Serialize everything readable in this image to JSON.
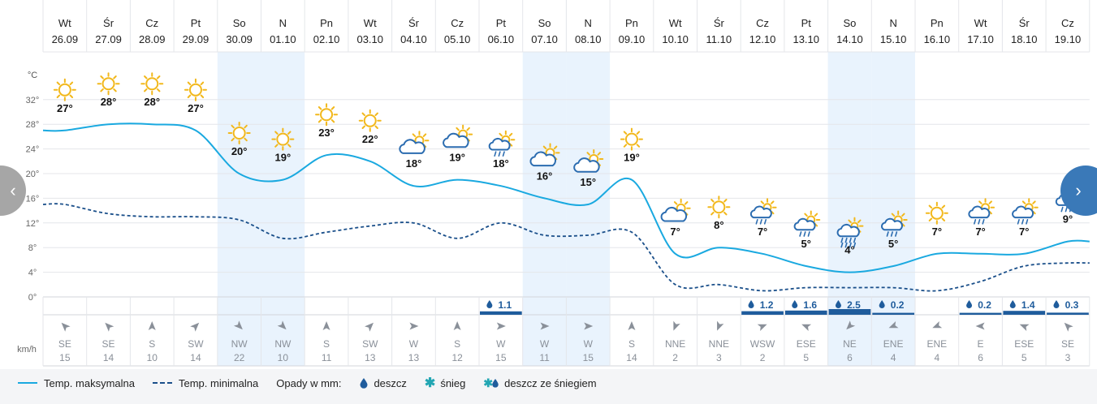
{
  "colors": {
    "max_line": "#1aa9e0",
    "min_line": "#1a4f8a",
    "weekend_bg": "#e9f3fd",
    "precip_bar": "#1f5c9c",
    "grid": "#e4e6ea",
    "sun": "#f2b81c",
    "cloud": "#2b6cb0"
  },
  "days": [
    {
      "dow": "Wt",
      "date": "26.09",
      "weekend": false,
      "temp_label": "27°",
      "icon": "sun-icon",
      "icon_temp": 27,
      "precip": "",
      "precip_mm": 0,
      "wind_dir": "SE",
      "wind_deg": 315,
      "wind_speed": "15"
    },
    {
      "dow": "Śr",
      "date": "27.09",
      "weekend": false,
      "temp_label": "28°",
      "icon": "sun-icon",
      "icon_temp": 28,
      "precip": "",
      "precip_mm": 0,
      "wind_dir": "SE",
      "wind_deg": 315,
      "wind_speed": "14"
    },
    {
      "dow": "Cz",
      "date": "28.09",
      "weekend": false,
      "temp_label": "28°",
      "icon": "sun-icon",
      "icon_temp": 28,
      "precip": "",
      "precip_mm": 0,
      "wind_dir": "S",
      "wind_deg": 0,
      "wind_speed": "10"
    },
    {
      "dow": "Pt",
      "date": "29.09",
      "weekend": false,
      "temp_label": "27°",
      "icon": "sun-icon",
      "icon_temp": 27,
      "precip": "",
      "precip_mm": 0,
      "wind_dir": "SW",
      "wind_deg": 45,
      "wind_speed": "14"
    },
    {
      "dow": "So",
      "date": "30.09",
      "weekend": true,
      "temp_label": "20°",
      "icon": "sun-icon",
      "icon_temp": 20,
      "precip": "",
      "precip_mm": 0,
      "wind_dir": "NW",
      "wind_deg": 135,
      "wind_speed": "22"
    },
    {
      "dow": "N",
      "date": "01.10",
      "weekend": true,
      "temp_label": "19°",
      "icon": "sun-icon",
      "icon_temp": 19,
      "precip": "",
      "precip_mm": 0,
      "wind_dir": "NW",
      "wind_deg": 135,
      "wind_speed": "10"
    },
    {
      "dow": "Pn",
      "date": "02.10",
      "weekend": false,
      "temp_label": "23°",
      "icon": "sun-icon",
      "icon_temp": 23,
      "precip": "",
      "precip_mm": 0,
      "wind_dir": "S",
      "wind_deg": 0,
      "wind_speed": "11"
    },
    {
      "dow": "Wt",
      "date": "03.10",
      "weekend": false,
      "temp_label": "22°",
      "icon": "sun-icon",
      "icon_temp": 22,
      "precip": "",
      "precip_mm": 0,
      "wind_dir": "SW",
      "wind_deg": 45,
      "wind_speed": "13"
    },
    {
      "dow": "Śr",
      "date": "04.10",
      "weekend": false,
      "temp_label": "18°",
      "icon": "partly-cloudy-icon",
      "icon_temp": 18,
      "precip": "",
      "precip_mm": 0,
      "wind_dir": "W",
      "wind_deg": 90,
      "wind_speed": "13"
    },
    {
      "dow": "Cz",
      "date": "05.10",
      "weekend": false,
      "temp_label": "19°",
      "icon": "partly-cloudy-icon",
      "icon_temp": 19,
      "precip": "",
      "precip_mm": 0,
      "wind_dir": "S",
      "wind_deg": 0,
      "wind_speed": "12"
    },
    {
      "dow": "Pt",
      "date": "06.10",
      "weekend": false,
      "temp_label": "18°",
      "icon": "sun-cloud-rain-icon",
      "icon_temp": 18,
      "precip": "1.1",
      "precip_mm": 1.1,
      "wind_dir": "W",
      "wind_deg": 90,
      "wind_speed": "15"
    },
    {
      "dow": "So",
      "date": "07.10",
      "weekend": true,
      "temp_label": "16°",
      "icon": "partly-cloudy-icon",
      "icon_temp": 16,
      "precip": "",
      "precip_mm": 0,
      "wind_dir": "W",
      "wind_deg": 90,
      "wind_speed": "11"
    },
    {
      "dow": "N",
      "date": "08.10",
      "weekend": true,
      "temp_label": "15°",
      "icon": "partly-cloudy-icon",
      "icon_temp": 15,
      "precip": "",
      "precip_mm": 0,
      "wind_dir": "W",
      "wind_deg": 90,
      "wind_speed": "15"
    },
    {
      "dow": "Pn",
      "date": "09.10",
      "weekend": false,
      "temp_label": "19°",
      "icon": "sun-icon",
      "icon_temp": 19,
      "precip": "",
      "precip_mm": 0,
      "wind_dir": "S",
      "wind_deg": 0,
      "wind_speed": "14"
    },
    {
      "dow": "Wt",
      "date": "10.10",
      "weekend": false,
      "temp_label": "7°",
      "icon": "partly-cloudy-icon",
      "icon_temp": 7,
      "precip": "",
      "precip_mm": 0,
      "wind_dir": "NNE",
      "wind_deg": 202,
      "wind_speed": "2"
    },
    {
      "dow": "Śr",
      "date": "11.10",
      "weekend": false,
      "temp_label": "8°",
      "icon": "sun-icon",
      "icon_temp": 8,
      "precip": "",
      "precip_mm": 0,
      "wind_dir": "NNE",
      "wind_deg": 202,
      "wind_speed": "3"
    },
    {
      "dow": "Cz",
      "date": "12.10",
      "weekend": false,
      "temp_label": "7°",
      "icon": "sun-cloud-rain-icon",
      "icon_temp": 7,
      "precip": "1.2",
      "precip_mm": 1.2,
      "wind_dir": "WSW",
      "wind_deg": 68,
      "wind_speed": "2"
    },
    {
      "dow": "Pt",
      "date": "13.10",
      "weekend": false,
      "temp_label": "5°",
      "icon": "sun-cloud-rain-icon",
      "icon_temp": 5,
      "precip": "1.6",
      "precip_mm": 1.6,
      "wind_dir": "ESE",
      "wind_deg": 292,
      "wind_speed": "5"
    },
    {
      "dow": "So",
      "date": "14.10",
      "weekend": true,
      "temp_label": "4°",
      "icon": "heavy-rain-icon",
      "icon_temp": 4,
      "precip": "2.5",
      "precip_mm": 2.5,
      "wind_dir": "NE",
      "wind_deg": 225,
      "wind_speed": "6"
    },
    {
      "dow": "N",
      "date": "15.10",
      "weekend": true,
      "temp_label": "5°",
      "icon": "sun-cloud-rain-icon",
      "icon_temp": 5,
      "precip": "0.2",
      "precip_mm": 0.2,
      "wind_dir": "ENE",
      "wind_deg": 248,
      "wind_speed": "4"
    },
    {
      "dow": "Pn",
      "date": "16.10",
      "weekend": false,
      "temp_label": "7°",
      "icon": "sun-icon",
      "icon_temp": 7,
      "precip": "",
      "precip_mm": 0,
      "wind_dir": "ENE",
      "wind_deg": 248,
      "wind_speed": "4"
    },
    {
      "dow": "Wt",
      "date": "17.10",
      "weekend": false,
      "temp_label": "7°",
      "icon": "sun-cloud-rain-icon",
      "icon_temp": 7,
      "precip": "0.2",
      "precip_mm": 0.2,
      "wind_dir": "E",
      "wind_deg": 270,
      "wind_speed": "6"
    },
    {
      "dow": "Śr",
      "date": "18.10",
      "weekend": false,
      "temp_label": "7°",
      "icon": "sun-cloud-rain-icon",
      "icon_temp": 7,
      "precip": "1.4",
      "precip_mm": 1.4,
      "wind_dir": "ESE",
      "wind_deg": 292,
      "wind_speed": "5"
    },
    {
      "dow": "Cz",
      "date": "19.10",
      "weekend": false,
      "temp_label": "9°",
      "icon": "sun-cloud-rain-icon",
      "icon_temp": 9,
      "precip": "0.3",
      "precip_mm": 0.3,
      "wind_dir": "SE",
      "wind_deg": 315,
      "wind_speed": "3"
    }
  ],
  "chart_data": {
    "type": "line",
    "x": [
      "26.09",
      "27.09",
      "28.09",
      "29.09",
      "30.09",
      "01.10",
      "02.10",
      "03.10",
      "04.10",
      "05.10",
      "06.10",
      "07.10",
      "08.10",
      "09.10",
      "10.10",
      "11.10",
      "12.10",
      "13.10",
      "14.10",
      "15.10",
      "16.10",
      "17.10",
      "18.10",
      "19.10"
    ],
    "series": [
      {
        "name": "Temp. maksymalna",
        "values": [
          27,
          28,
          28,
          27,
          20,
          19,
          23,
          22,
          18,
          19,
          18,
          16,
          15,
          19,
          7,
          8,
          7,
          5,
          4,
          5,
          7,
          7,
          7,
          9
        ]
      },
      {
        "name": "Temp. minimalna",
        "values": [
          15,
          13.5,
          13,
          13,
          12.5,
          9.5,
          10.5,
          11.5,
          12,
          9.5,
          12,
          10,
          10,
          10.5,
          2,
          2,
          1,
          1.5,
          1.5,
          1.5,
          1,
          2.5,
          5,
          5.5
        ]
      }
    ],
    "ylabel": "°C",
    "yticks": [
      "0°",
      "4°",
      "8°",
      "12°",
      "16°",
      "20°",
      "24°",
      "28°",
      "32°"
    ],
    "ylim": [
      0,
      36
    ],
    "precip_label": "Opady w mm:",
    "wind_unit": "km/h",
    "grid": true,
    "legend_position": "bottom-left"
  },
  "legend": {
    "max": "Temp. maksymalna",
    "min": "Temp. minimalna",
    "precip_title": "Opady w mm:",
    "rain": "deszcz",
    "snow": "śnieg",
    "rain_snow": "deszcz ze śniegiem"
  },
  "nav": {
    "prev": "‹",
    "next": "›"
  }
}
